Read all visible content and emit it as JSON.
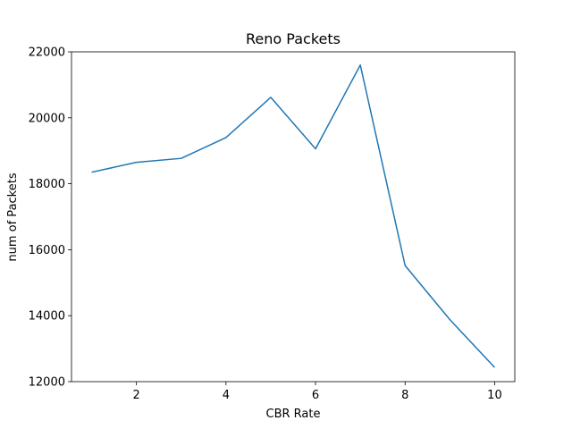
{
  "chart_data": {
    "type": "line",
    "title": "Reno Packets",
    "xlabel": "CBR Rate",
    "ylabel": "num of Packets",
    "xlim": [
      0.55,
      10.45
    ],
    "ylim": [
      12000,
      22000
    ],
    "xticks": [
      2,
      4,
      6,
      8,
      10
    ],
    "yticks": [
      12000,
      14000,
      16000,
      18000,
      20000,
      22000
    ],
    "grid": false,
    "series": [
      {
        "color": "#1f77b4",
        "x": [
          1,
          2,
          3,
          4,
          5,
          6,
          7,
          8,
          9,
          10
        ],
        "y": [
          18350,
          18650,
          18770,
          19400,
          20620,
          19060,
          21600,
          15520,
          13880,
          12430
        ]
      }
    ]
  }
}
